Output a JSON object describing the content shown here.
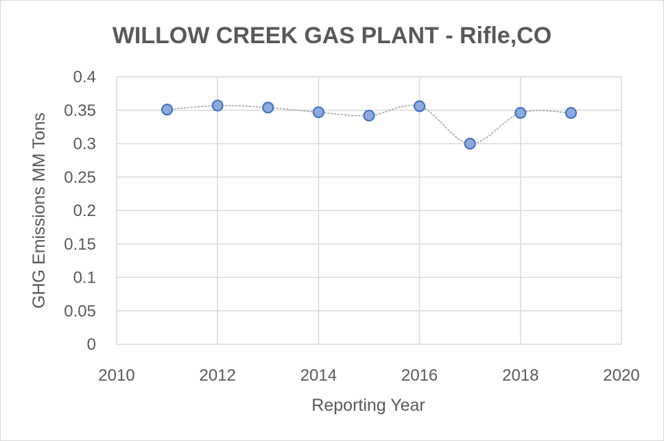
{
  "chart_data": {
    "type": "scatter",
    "title": "WILLOW CREEK GAS PLANT - Rifle,CO",
    "xlabel": "Reporting Year",
    "ylabel": "GHG Emissions MM Tons",
    "xlim": [
      2010,
      2020
    ],
    "ylim": [
      0,
      0.4
    ],
    "x_ticks": [
      "2010",
      "2012",
      "2014",
      "2016",
      "2018",
      "2020"
    ],
    "y_ticks": [
      "0",
      "0.05",
      "0.1",
      "0.15",
      "0.2",
      "0.25",
      "0.3",
      "0.35",
      "0.4"
    ],
    "grid": true,
    "legend": "none",
    "series": [
      {
        "x": [
          2011,
          2012,
          2013,
          2014,
          2015,
          2016,
          2017,
          2018,
          2019
        ],
        "y": [
          0.351,
          0.357,
          0.354,
          0.347,
          0.342,
          0.356,
          0.3,
          0.346,
          0.346
        ],
        "marker_color": "#8eaadb",
        "marker_edge_color": "#4472c4",
        "line_color": "#a6a6a6",
        "line_style": "dotted"
      }
    ]
  }
}
